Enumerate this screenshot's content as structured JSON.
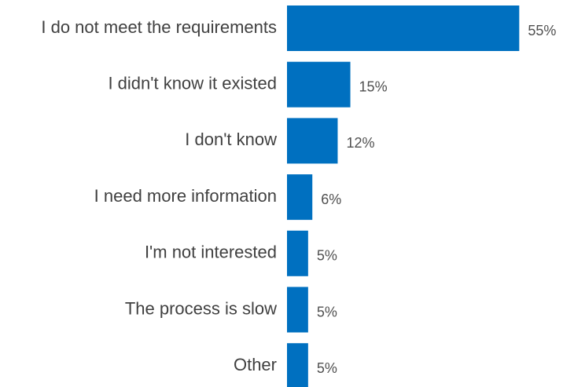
{
  "chart_data": {
    "type": "barh",
    "categories": [
      "I do not meet the requirements",
      "I didn't know it existed",
      "I don't know",
      "I need more information",
      "I'm not interested",
      "The process is slow",
      "Other"
    ],
    "values": [
      55,
      15,
      12,
      6,
      5,
      5,
      5
    ],
    "value_labels": [
      "55%",
      "15%",
      "12%",
      "6%",
      "5%",
      "5%",
      "5%"
    ],
    "color": "#0070c0"
  }
}
